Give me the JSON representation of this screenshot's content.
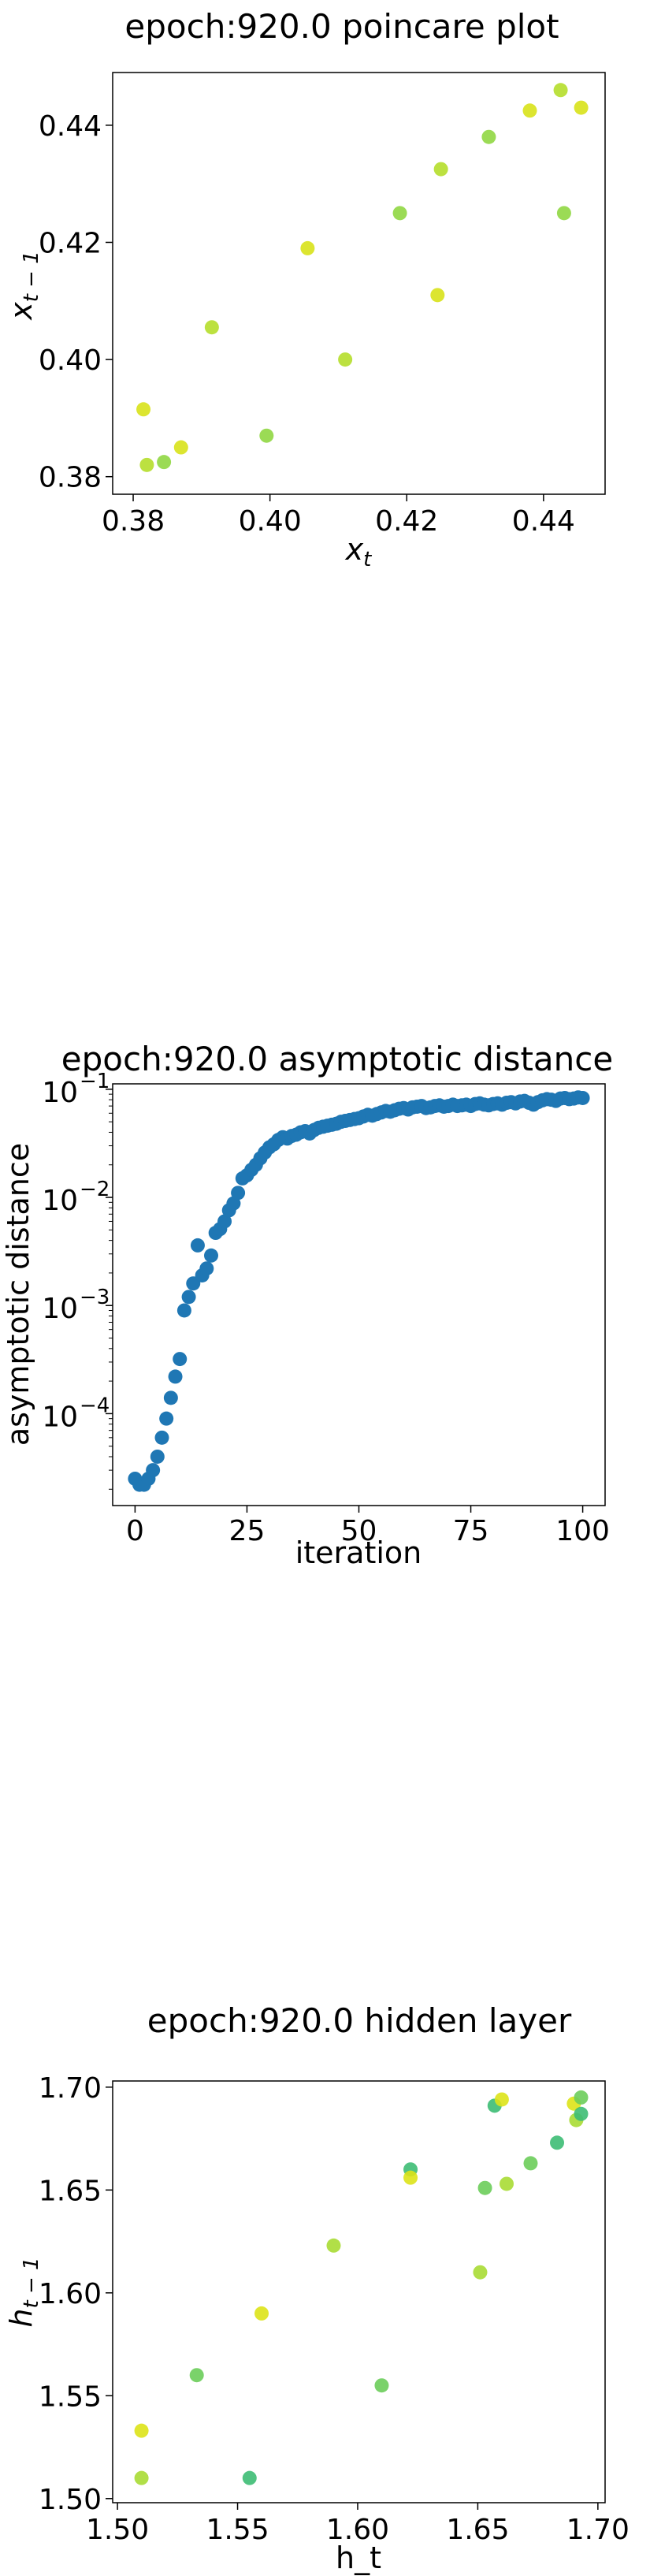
{
  "chart_data": [
    {
      "type": "scatter",
      "title": "epoch:920.0 poincare plot",
      "xlabel": "x_t",
      "ylabel": "x_{t-1}",
      "xlim": [
        0.377,
        0.449
      ],
      "ylim": [
        0.377,
        0.449
      ],
      "xticks": [
        "0.38",
        "0.40",
        "0.42",
        "0.44"
      ],
      "yticks": [
        "0.38",
        "0.40",
        "0.42",
        "0.44"
      ],
      "colors": [
        "#d8e219",
        "#b5de2b",
        "#90d743"
      ],
      "points": [
        [
          0.3815,
          0.3915
        ],
        [
          0.382,
          0.382
        ],
        [
          0.3845,
          0.3825
        ],
        [
          0.387,
          0.385
        ],
        [
          0.3915,
          0.4055
        ],
        [
          0.3995,
          0.387
        ],
        [
          0.4055,
          0.419
        ],
        [
          0.411,
          0.4
        ],
        [
          0.419,
          0.425
        ],
        [
          0.4245,
          0.411
        ],
        [
          0.425,
          0.4325
        ],
        [
          0.432,
          0.438
        ],
        [
          0.438,
          0.4425
        ],
        [
          0.4425,
          0.446
        ],
        [
          0.443,
          0.425
        ],
        [
          0.4455,
          0.443
        ]
      ]
    },
    {
      "type": "scatter",
      "title": "epoch:920.0 asymptotic distance",
      "xlabel": "iteration",
      "ylabel": "asymptotic distance",
      "xlim": [
        -5,
        105
      ],
      "ylim_log10": [
        -4.85,
        -0.95
      ],
      "yscale": "log",
      "xticks": [
        "0",
        "25",
        "50",
        "75",
        "100"
      ],
      "yticks": [
        {
          "base": "10",
          "exp": "−1",
          "log": -1
        },
        {
          "base": "10",
          "exp": "−2",
          "log": -2
        },
        {
          "base": "10",
          "exp": "−3",
          "log": -3
        },
        {
          "base": "10",
          "exp": "−4",
          "log": -4
        }
      ],
      "color": "#1f77b4",
      "y": [
        2.5e-05,
        2.2e-05,
        2.2e-05,
        2.5e-05,
        3e-05,
        4e-05,
        6e-05,
        9e-05,
        0.00014,
        0.00022,
        0.00032,
        0.0009,
        0.0012,
        0.0016,
        0.0036,
        0.0019,
        0.0022,
        0.0029,
        0.0047,
        0.0051,
        0.006,
        0.0076,
        0.0088,
        0.011,
        0.015,
        0.016,
        0.018,
        0.02,
        0.023,
        0.026,
        0.029,
        0.031,
        0.034,
        0.036,
        0.035,
        0.037,
        0.038,
        0.04,
        0.041,
        0.039,
        0.042,
        0.044,
        0.045,
        0.046,
        0.047,
        0.048,
        0.05,
        0.051,
        0.052,
        0.053,
        0.054,
        0.056,
        0.058,
        0.057,
        0.059,
        0.061,
        0.063,
        0.062,
        0.064,
        0.066,
        0.067,
        0.065,
        0.068,
        0.069,
        0.07,
        0.067,
        0.068,
        0.07,
        0.071,
        0.069,
        0.07,
        0.072,
        0.07,
        0.071,
        0.072,
        0.07,
        0.073,
        0.074,
        0.072,
        0.071,
        0.073,
        0.074,
        0.072,
        0.075,
        0.076,
        0.074,
        0.077,
        0.078,
        0.075,
        0.072,
        0.076,
        0.079,
        0.081,
        0.08,
        0.078,
        0.082,
        0.083,
        0.081,
        0.082,
        0.084,
        0.083
      ]
    },
    {
      "type": "scatter",
      "title": "epoch:920.0 hidden layer",
      "xlabel": "h_t",
      "ylabel": "h_{t-1}",
      "xlim": [
        1.498,
        1.703
      ],
      "ylim": [
        1.498,
        1.703
      ],
      "xticks": [
        "1.50",
        "1.55",
        "1.60",
        "1.65",
        "1.70"
      ],
      "yticks": [
        "1.50",
        "1.55",
        "1.60",
        "1.65",
        "1.70"
      ],
      "colors": [
        "#dde318",
        "#a8db34",
        "#6ccd5a",
        "#3dbc74"
      ],
      "points": [
        [
          1.51,
          1.533
        ],
        [
          1.51,
          1.51
        ],
        [
          1.533,
          1.56
        ],
        [
          1.555,
          1.51
        ],
        [
          1.56,
          1.59
        ],
        [
          1.59,
          1.623
        ],
        [
          1.61,
          1.555
        ],
        [
          1.622,
          1.66
        ],
        [
          1.622,
          1.656
        ],
        [
          1.651,
          1.61
        ],
        [
          1.653,
          1.651
        ],
        [
          1.657,
          1.691
        ],
        [
          1.66,
          1.694
        ],
        [
          1.662,
          1.653
        ],
        [
          1.672,
          1.663
        ],
        [
          1.683,
          1.673
        ],
        [
          1.69,
          1.692
        ],
        [
          1.691,
          1.684
        ],
        [
          1.693,
          1.695
        ],
        [
          1.693,
          1.687
        ]
      ]
    }
  ]
}
